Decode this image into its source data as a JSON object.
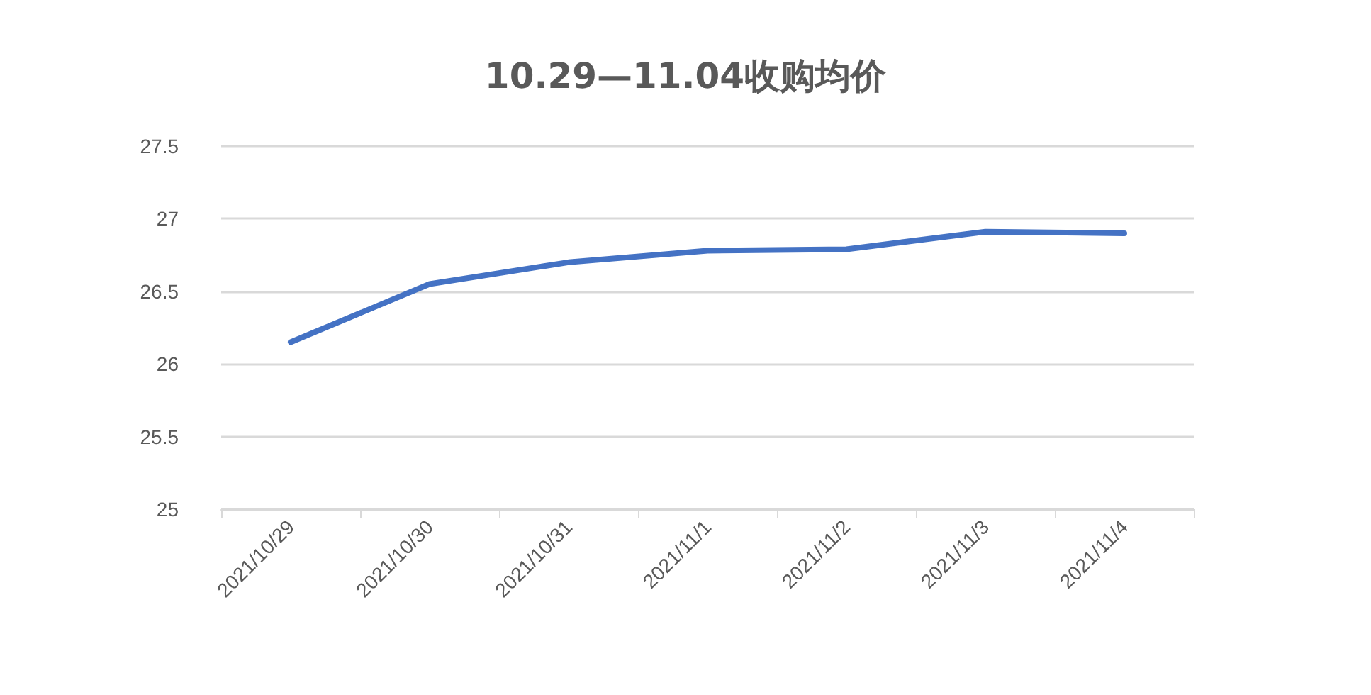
{
  "chart_data": {
    "type": "line",
    "title": "10.29—11.04收购均价",
    "categories": [
      "2021/10/29",
      "2021/10/30",
      "2021/10/31",
      "2021/11/1",
      "2021/11/2",
      "2021/11/3",
      "2021/11/4"
    ],
    "series": [
      {
        "color": "#4472c4",
        "values": [
          26.15,
          26.55,
          26.7,
          26.78,
          26.79,
          26.91,
          26.9
        ]
      }
    ],
    "ylim": [
      25,
      27.5
    ],
    "yticks": [
      25,
      25.5,
      26,
      26.5,
      27,
      27.5
    ],
    "grid": "y",
    "marker": "none",
    "line_style": "solid"
  }
}
